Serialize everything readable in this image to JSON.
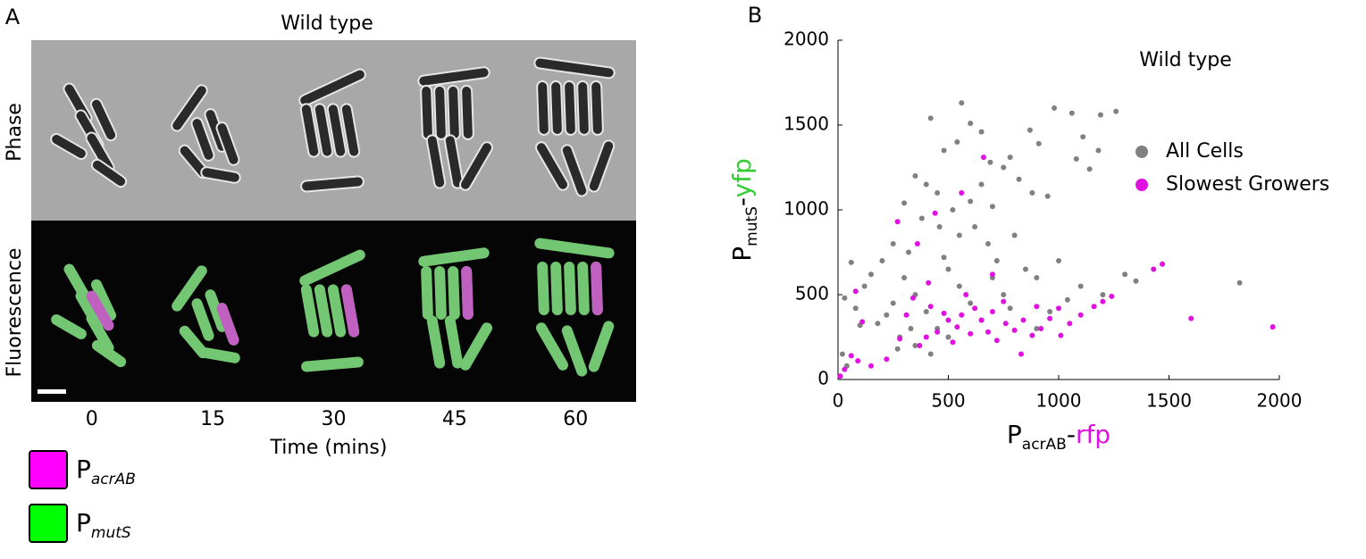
{
  "panel_a": {
    "panel_label": "A",
    "title": "Wild type",
    "row_labels": [
      "Phase",
      "Fluorescence"
    ],
    "time_labels": [
      0,
      15,
      30,
      45,
      60
    ],
    "xlabel": "Time (mins)",
    "legend": [
      {
        "label": [
          "P",
          "acrAB"
        ],
        "color": "#ff00ff"
      },
      {
        "label": [
          "P",
          "mutS"
        ],
        "color": "#00ff00"
      }
    ]
  },
  "chart_data": {
    "type": "scatter",
    "panel_label": "B",
    "title": "Wild type",
    "xlabel": [
      "P",
      "acrAB",
      "-",
      "rfp"
    ],
    "xlabel_colors": [
      "#000000",
      "#000000",
      "#000000",
      "#e010e0"
    ],
    "ylabel": [
      "P",
      "mutS",
      "-",
      "yfp"
    ],
    "ylabel_colors": [
      "#000000",
      "#000000",
      "#000000",
      "#33cc33"
    ],
    "xlim": [
      0,
      2000
    ],
    "ylim": [
      0,
      2000
    ],
    "xticks": [
      0,
      500,
      1000,
      1500,
      2000
    ],
    "yticks": [
      0,
      500,
      1000,
      1500,
      2000
    ],
    "grid": false,
    "legend": "upper right",
    "series": [
      {
        "name": "All Cells",
        "color": "#808080",
        "x": [
          560,
          420,
          600,
          650,
          980,
          1060,
          1260,
          1190,
          870,
          1110,
          910,
          1180,
          1140,
          1080,
          540,
          480,
          690,
          780,
          300,
          350,
          400,
          450,
          520,
          600,
          650,
          700,
          750,
          820,
          880,
          950,
          380,
          460,
          550,
          620,
          680,
          720,
          800,
          850,
          900,
          1000,
          1100,
          1200,
          1300,
          1350,
          1820,
          250,
          200,
          150,
          120,
          60,
          30,
          80,
          300,
          350,
          400,
          450,
          500,
          550,
          600,
          650,
          700,
          750,
          330,
          280,
          220,
          180,
          270,
          350,
          420,
          500,
          40,
          20,
          100,
          960,
          1040,
          900,
          780,
          250,
          320,
          480
        ],
        "values": [
          1630,
          1540,
          1510,
          1460,
          1600,
          1570,
          1580,
          1560,
          1470,
          1430,
          1390,
          1350,
          1240,
          1300,
          1400,
          1350,
          1280,
          1310,
          1040,
          1200,
          1150,
          1100,
          1000,
          1050,
          1150,
          1020,
          1250,
          1180,
          1100,
          1080,
          950,
          900,
          850,
          900,
          800,
          700,
          850,
          650,
          600,
          700,
          550,
          500,
          620,
          580,
          570,
          800,
          700,
          620,
          550,
          690,
          480,
          420,
          600,
          500,
          400,
          300,
          650,
          550,
          450,
          350,
          600,
          500,
          300,
          250,
          380,
          330,
          180,
          200,
          150,
          250,
          80,
          150,
          320,
          400,
          470,
          300,
          420,
          450,
          750,
          720
        ]
      },
      {
        "name": "Slowest Growers",
        "color": "#e010e0",
        "x": [
          1970,
          1600,
          1470,
          1430,
          1240,
          1200,
          1160,
          1100,
          1050,
          1000,
          960,
          920,
          880,
          840,
          800,
          760,
          720,
          700,
          680,
          650,
          620,
          600,
          580,
          560,
          540,
          520,
          500,
          480,
          450,
          420,
          400,
          370,
          340,
          310,
          280,
          900,
          1010,
          750,
          660,
          560,
          440,
          360,
          410,
          270,
          80,
          110,
          60,
          30,
          10,
          90,
          150,
          220,
          700,
          830
        ],
        "values": [
          310,
          360,
          680,
          650,
          490,
          460,
          430,
          380,
          330,
          420,
          360,
          300,
          260,
          350,
          290,
          330,
          230,
          400,
          280,
          350,
          420,
          270,
          500,
          380,
          310,
          220,
          350,
          390,
          280,
          430,
          250,
          200,
          480,
          380,
          240,
          430,
          260,
          460,
          1310,
          1100,
          980,
          800,
          570,
          930,
          520,
          340,
          140,
          60,
          20,
          110,
          80,
          120,
          620,
          150
        ]
      }
    ]
  }
}
